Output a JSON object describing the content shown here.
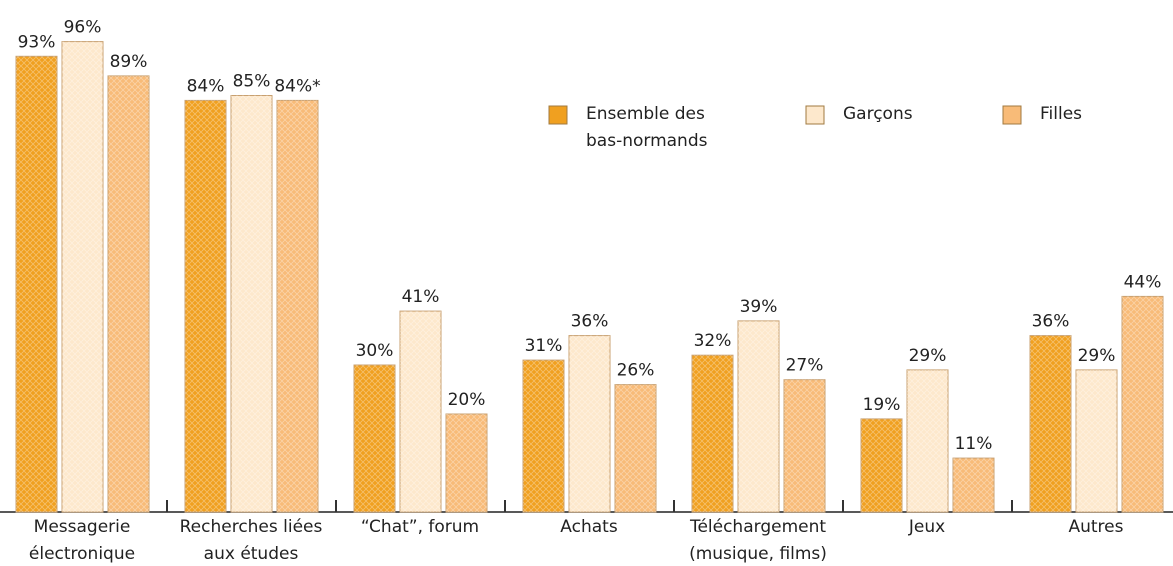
{
  "chart_data": {
    "type": "bar",
    "categories": [
      [
        "Messagerie",
        "électronique"
      ],
      [
        "Recherches liées",
        "aux études"
      ],
      [
        "“Chat”, forum"
      ],
      [
        "Achats"
      ],
      [
        "Téléchargement",
        "(musique, films)"
      ],
      [
        "Jeux"
      ],
      [
        "Autres"
      ]
    ],
    "series": [
      {
        "name": [
          "Ensemble des",
          "bas-normands"
        ],
        "color": "#f0a020",
        "values": [
          93,
          84,
          30,
          31,
          32,
          19,
          36
        ],
        "value_labels": [
          "93%",
          "84%",
          "30%",
          "31%",
          "32%",
          "19%",
          "36%"
        ]
      },
      {
        "name": [
          "Garçons"
        ],
        "color": "#fde8cc",
        "values": [
          96,
          85,
          41,
          36,
          39,
          29,
          29
        ],
        "value_labels": [
          "96%",
          "85%",
          "41%",
          "36%",
          "39%",
          "29%",
          "29%"
        ]
      },
      {
        "name": [
          "Filles"
        ],
        "color": "#f8bb78",
        "values": [
          89,
          84,
          20,
          26,
          27,
          11,
          44
        ],
        "value_labels": [
          "89%",
          "84%*",
          "20%",
          "26%",
          "27%",
          "11%",
          "44%"
        ]
      }
    ],
    "ylim": [
      0,
      100
    ]
  }
}
